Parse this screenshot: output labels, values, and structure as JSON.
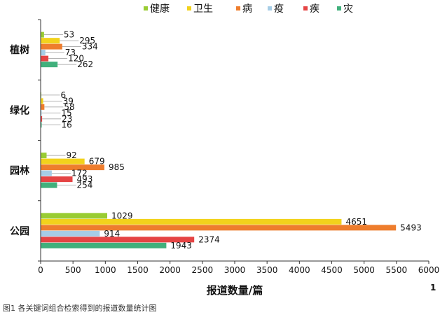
{
  "chart_data": {
    "type": "bar",
    "orientation": "horizontal",
    "categories": [
      "植树",
      "绿化",
      "园林",
      "公园"
    ],
    "series": [
      {
        "name": "健康",
        "color": "#99cc33",
        "values": [
          53,
          6,
          92,
          1029
        ]
      },
      {
        "name": "卫生",
        "color": "#f2d21c",
        "values": [
          295,
          39,
          679,
          4651
        ]
      },
      {
        "name": "病",
        "color": "#ee7d2d",
        "values": [
          334,
          58,
          985,
          5493
        ]
      },
      {
        "name": "疫",
        "color": "#a6cde6",
        "values": [
          73,
          15,
          172,
          914
        ]
      },
      {
        "name": "疾",
        "color": "#e54444",
        "values": [
          120,
          23,
          493,
          2374
        ]
      },
      {
        "name": "灾",
        "color": "#41b07c",
        "values": [
          262,
          16,
          254,
          1943
        ]
      }
    ],
    "xlabel": "报道数量/篇",
    "xlim": [
      0,
      6000
    ],
    "xticks": [
      0,
      500,
      1000,
      1500,
      2000,
      2500,
      3000,
      3500,
      4000,
      4500,
      5000,
      5500,
      6000
    ],
    "legend_position": "top",
    "grid": false
  },
  "caption": "图1 各关键词组合检索得到的报道数量统计图",
  "page_number": "1"
}
